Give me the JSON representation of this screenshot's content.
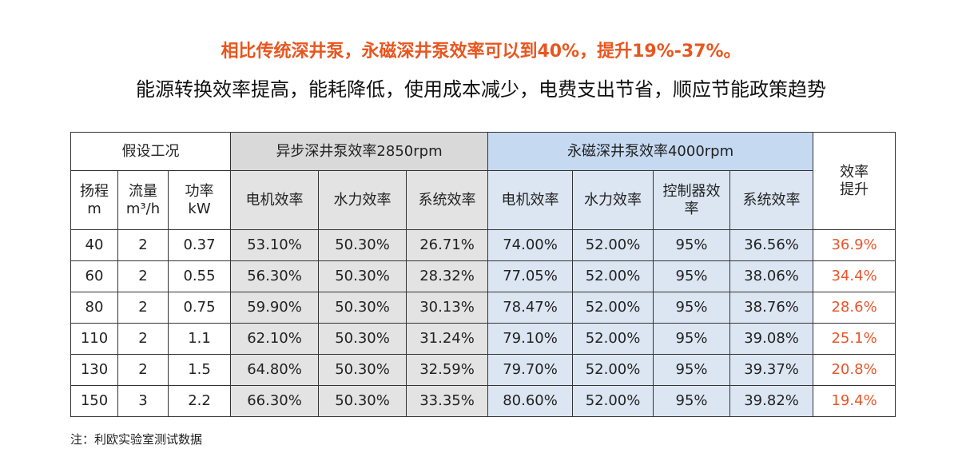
{
  "header": {
    "title": "相比传统深井泵，永磁深井泵效率可以到40%，提升19%-37%。",
    "subtitle": "能源转换效率提高，能耗降低，使用成本减少，电费支出节省，顺应节能政策趋势"
  },
  "table": {
    "groups": [
      "假设工况",
      "异步深井泵效率2850rpm",
      "永磁深井泵效率4000rpm",
      "效率\n提升"
    ],
    "columns": [
      "扬程\nm",
      "流量\nm³/h",
      "功率\nkW",
      "电机效率",
      "水力效率",
      "系统效率",
      "电机效率",
      "水力效率",
      "控制器效\n率",
      "系统效率"
    ],
    "rows": [
      [
        "40",
        "2",
        "0.37",
        "53.10%",
        "50.30%",
        "26.71%",
        "74.00%",
        "52.00%",
        "95%",
        "36.56%",
        "36.9%"
      ],
      [
        "60",
        "2",
        "0.55",
        "56.30%",
        "50.30%",
        "28.32%",
        "77.05%",
        "52.00%",
        "95%",
        "38.06%",
        "34.4%"
      ],
      [
        "80",
        "2",
        "0.75",
        "59.90%",
        "50.30%",
        "30.13%",
        "78.47%",
        "52.00%",
        "95%",
        "38.76%",
        "28.6%"
      ],
      [
        "110",
        "2",
        "1.1",
        "62.10%",
        "50.30%",
        "31.24%",
        "79.10%",
        "52.00%",
        "95%",
        "39.08%",
        "25.1%"
      ],
      [
        "130",
        "2",
        "1.5",
        "64.80%",
        "50.30%",
        "32.59%",
        "79.70%",
        "52.00%",
        "95%",
        "39.37%",
        "20.8%"
      ],
      [
        "150",
        "3",
        "2.2",
        "66.30%",
        "50.30%",
        "33.35%",
        "80.60%",
        "52.00%",
        "95%",
        "39.82%",
        "19.4%"
      ]
    ]
  },
  "footer": {
    "note": "注：利欧实验室测试数据"
  }
}
